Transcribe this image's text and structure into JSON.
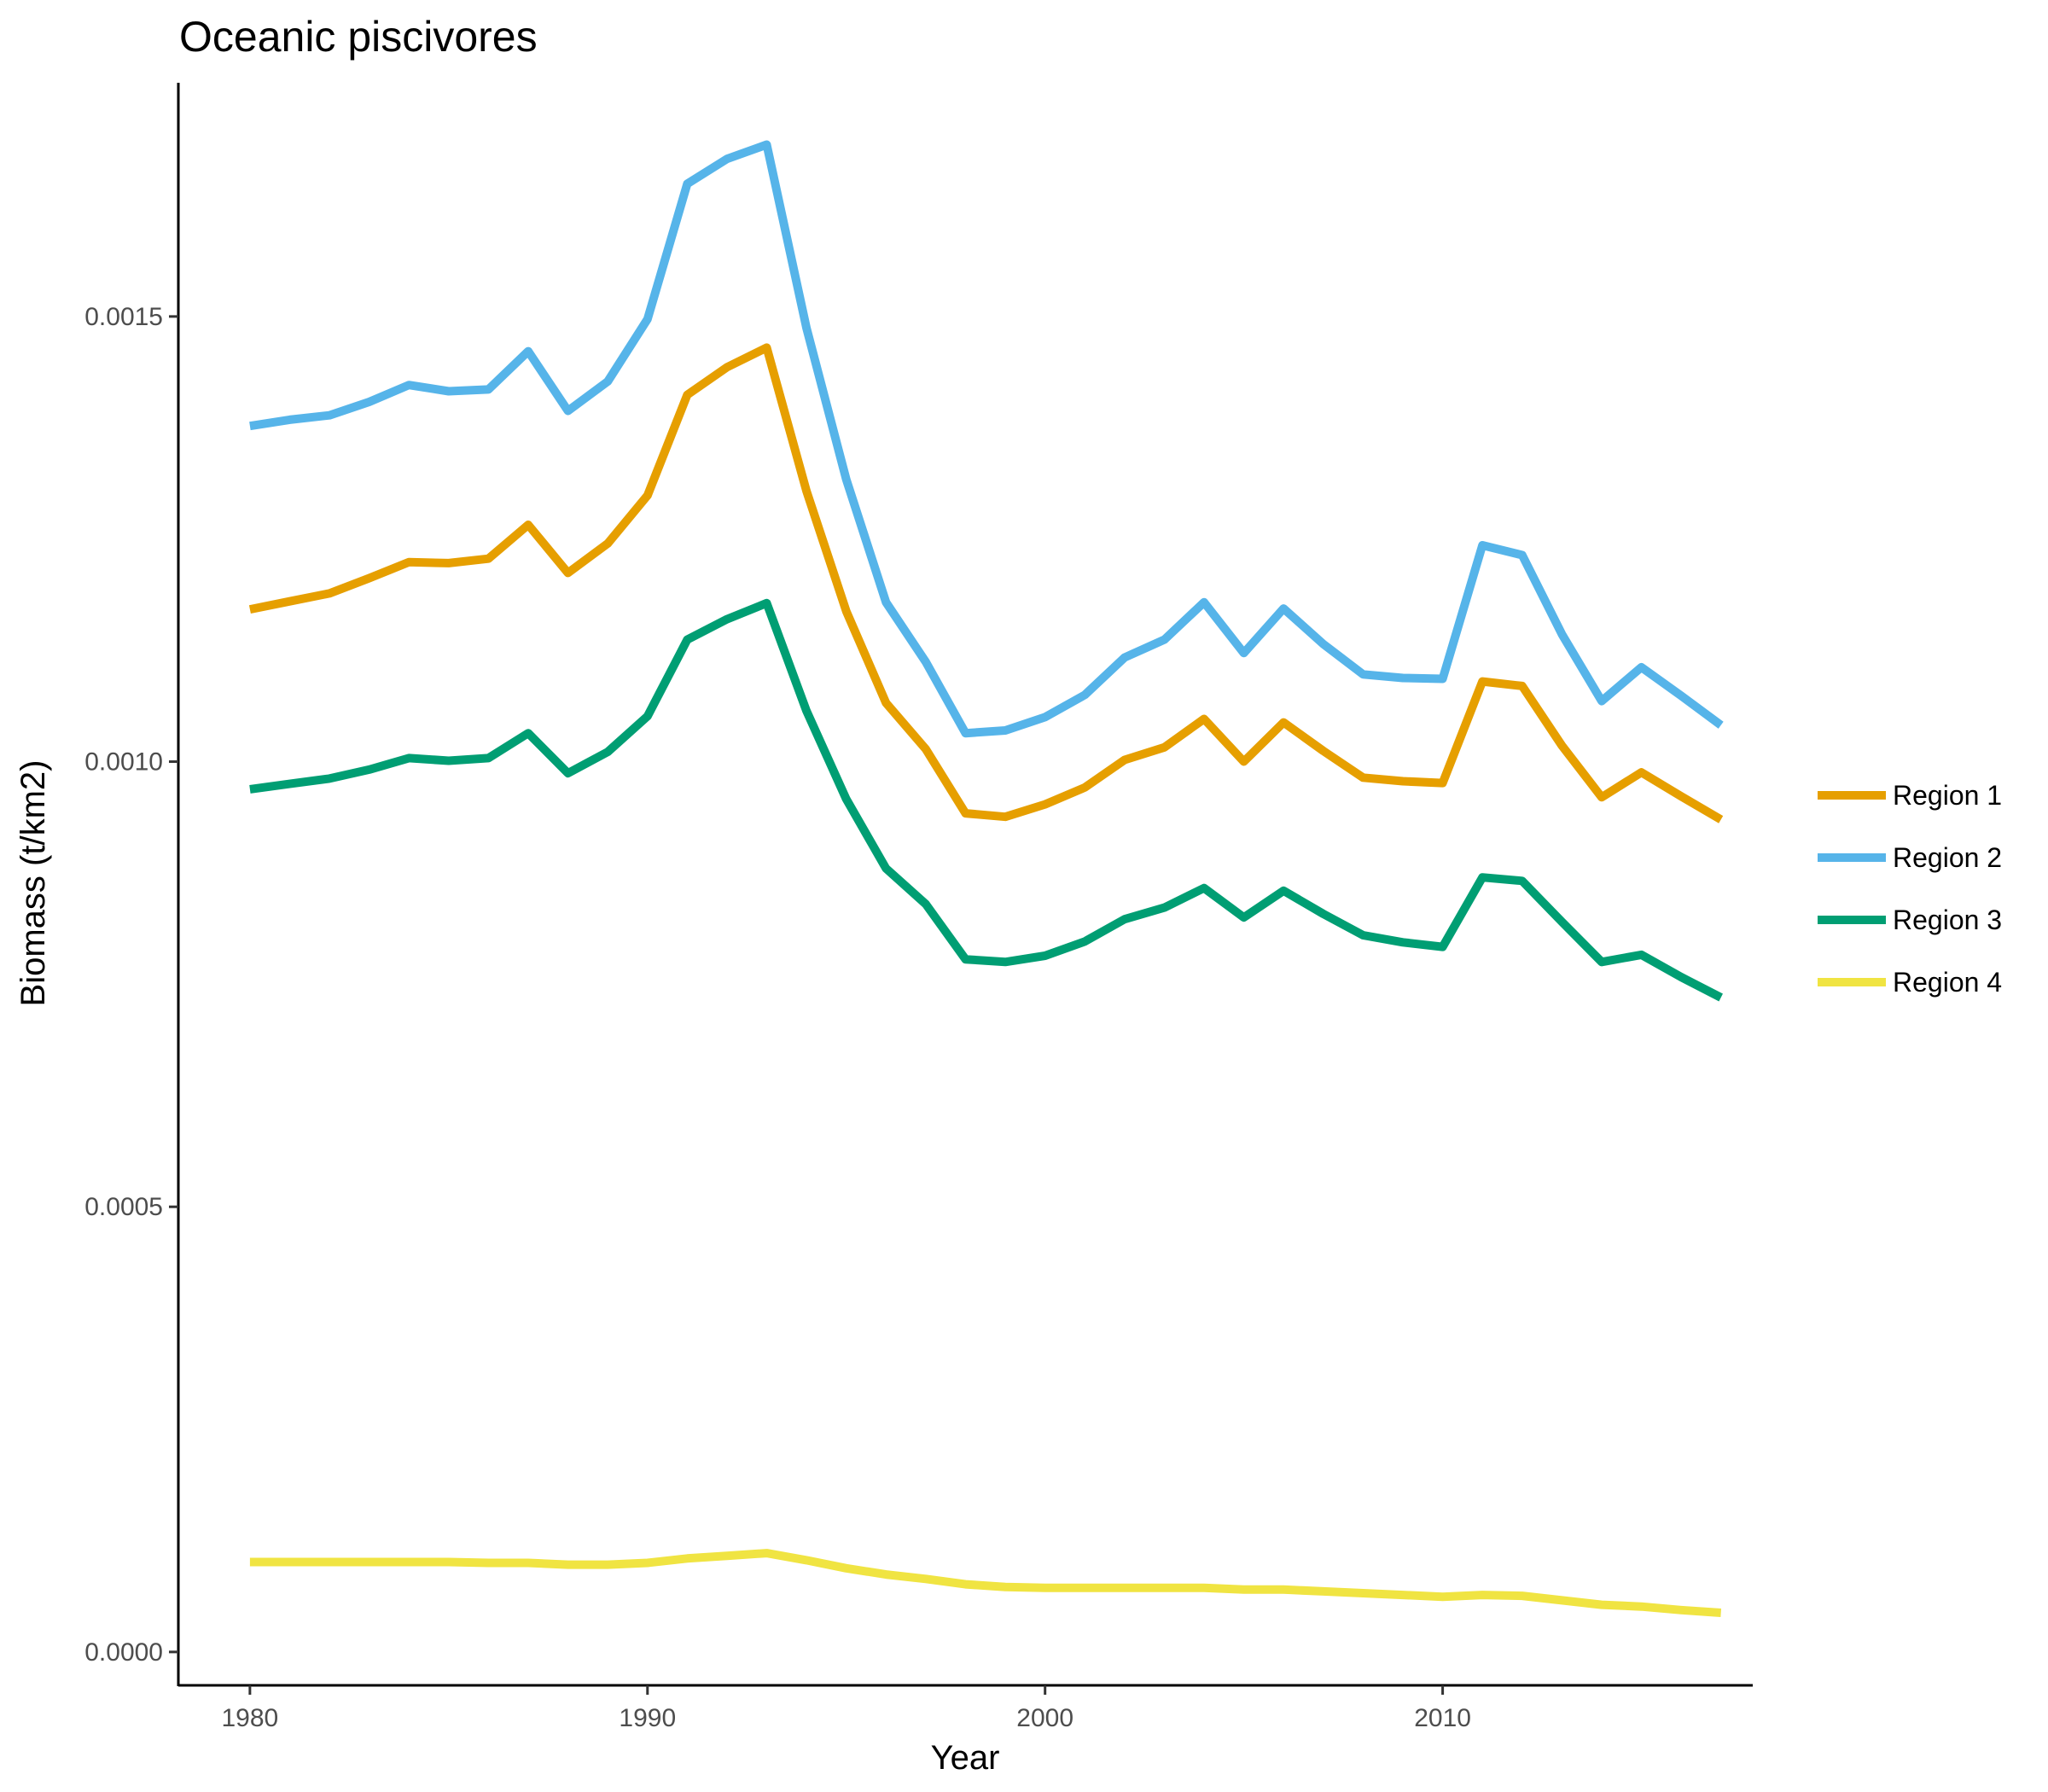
{
  "chart_data": {
    "type": "line",
    "title": "Oceanic piscivores",
    "xlabel": "Year",
    "ylabel": "Biomass (t/km2)",
    "xlim": [
      1978.2,
      2017.8
    ],
    "ylim": [
      -3.75e-05,
      0.0017625
    ],
    "xticks": [
      1980,
      1990,
      2000,
      2010
    ],
    "xtick_labels": [
      "1980",
      "1990",
      "2000",
      "2010"
    ],
    "yticks": [
      0,
      0.0005,
      0.001,
      0.0015
    ],
    "ytick_labels": [
      "0.0000",
      "0.0005",
      "0.0010",
      "0.0015"
    ],
    "grid": false,
    "legend_position": "right",
    "x": [
      1980,
      1981,
      1982,
      1983,
      1984,
      1985,
      1986,
      1987,
      1988,
      1989,
      1990,
      1991,
      1992,
      1993,
      1994,
      1995,
      1996,
      1997,
      1998,
      1999,
      2000,
      2001,
      2002,
      2003,
      2004,
      2005,
      2006,
      2007,
      2008,
      2009,
      2010,
      2011,
      2012,
      2013,
      2014,
      2015,
      2016,
      2017
    ],
    "series": [
      {
        "name": "Region 1",
        "color": "#E69F00",
        "values": [
          0.001171,
          0.00118,
          0.001189,
          0.001206,
          0.001224,
          0.001223,
          0.001228,
          0.001266,
          0.001212,
          0.001245,
          0.001299,
          0.001412,
          0.001443,
          0.001465,
          0.001304,
          0.001169,
          0.001066,
          0.001014,
          0.000942,
          0.000938,
          0.000952,
          0.000971,
          0.001002,
          0.001016,
          0.001048,
          0.001,
          0.001044,
          0.001012,
          0.000982,
          0.000978,
          0.000976,
          0.00109,
          0.001085,
          0.001018,
          0.00096,
          0.000988,
          0.000961,
          0.000935
        ]
      },
      {
        "name": "Region 2",
        "color": "#56B4E9",
        "values": [
          0.001377,
          0.001384,
          0.001389,
          0.001404,
          0.001423,
          0.001416,
          0.001418,
          0.001461,
          0.001394,
          0.001427,
          0.001497,
          0.001649,
          0.001677,
          0.001693,
          0.001487,
          0.001317,
          0.001179,
          0.001112,
          0.001032,
          0.001035,
          0.00105,
          0.001075,
          0.001117,
          0.001137,
          0.001179,
          0.001122,
          0.001172,
          0.001132,
          0.001098,
          0.001094,
          0.001093,
          0.001243,
          0.001232,
          0.001143,
          0.001068,
          0.001106,
          0.001074,
          0.001041
        ]
      },
      {
        "name": "Region 3",
        "color": "#009E73",
        "values": [
          0.000969,
          0.000975,
          0.000981,
          0.000991,
          0.001004,
          0.001001,
          0.001004,
          0.001032,
          0.000987,
          0.001011,
          0.001051,
          0.001137,
          0.00116,
          0.001178,
          0.001057,
          0.000958,
          0.00088,
          0.00084,
          0.000778,
          0.000775,
          0.000782,
          0.000798,
          0.000823,
          0.000836,
          0.000858,
          0.000825,
          0.000855,
          0.000829,
          0.000805,
          0.000797,
          0.000792,
          0.00087,
          0.000866,
          0.00082,
          0.000775,
          0.000783,
          0.000758,
          0.000735
        ]
      },
      {
        "name": "Region 4",
        "color": "#F0E442",
        "values": [
          0.000101,
          0.000101,
          0.000101,
          0.000101,
          0.000101,
          0.000101,
          0.0001,
          0.0001,
          9.8e-05,
          9.8e-05,
          0.0001,
          0.000105,
          0.000108,
          0.000111,
          0.000103,
          9.4e-05,
          8.7e-05,
          8.2e-05,
          7.6e-05,
          7.3e-05,
          7.2e-05,
          7.2e-05,
          7.2e-05,
          7.2e-05,
          7.2e-05,
          7e-05,
          7e-05,
          6.8e-05,
          6.6e-05,
          6.4e-05,
          6.2e-05,
          6.4e-05,
          6.3e-05,
          5.8e-05,
          5.3e-05,
          5.1e-05,
          4.7e-05,
          4.4e-05
        ]
      }
    ]
  }
}
